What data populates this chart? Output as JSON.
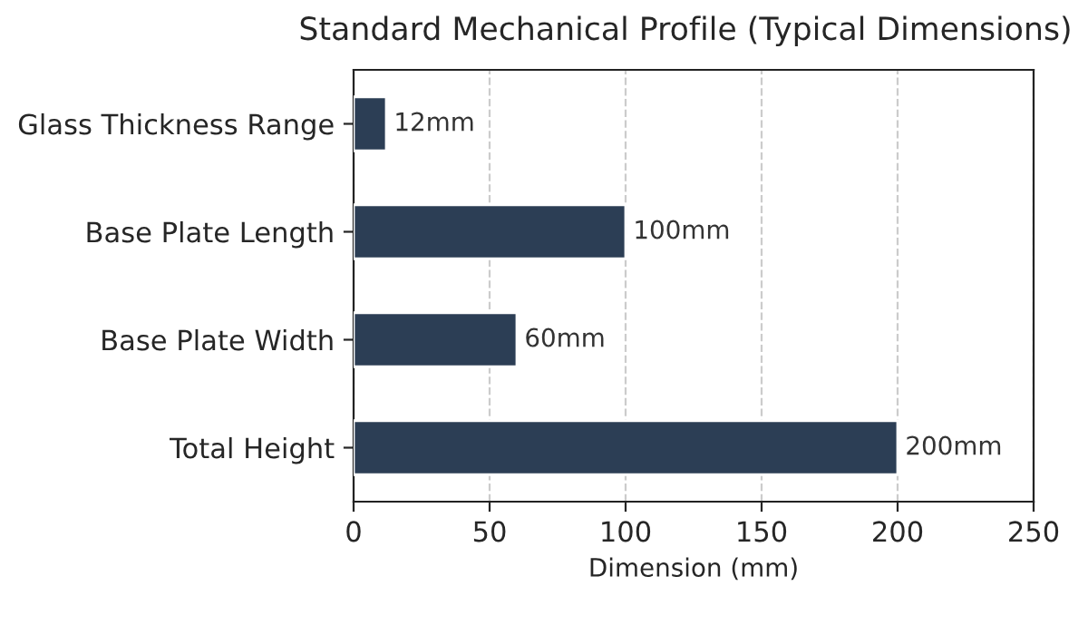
{
  "chart_data": {
    "type": "bar",
    "orientation": "horizontal",
    "title": "Standard Mechanical Profile (Typical Dimensions)",
    "xlabel": "Dimension (mm)",
    "categories": [
      "Glass Thickness Range",
      "Base Plate Length",
      "Base Plate Width",
      "Total Height"
    ],
    "values": [
      12,
      100,
      60,
      200
    ],
    "color": "#2c3e55",
    "value_labels": [
      "12mm",
      "100mm",
      "60mm",
      "200mm"
    ],
    "xlim": [
      0,
      250
    ],
    "xticks": [
      0,
      50,
      100,
      150,
      200,
      250
    ],
    "grid": "x"
  }
}
